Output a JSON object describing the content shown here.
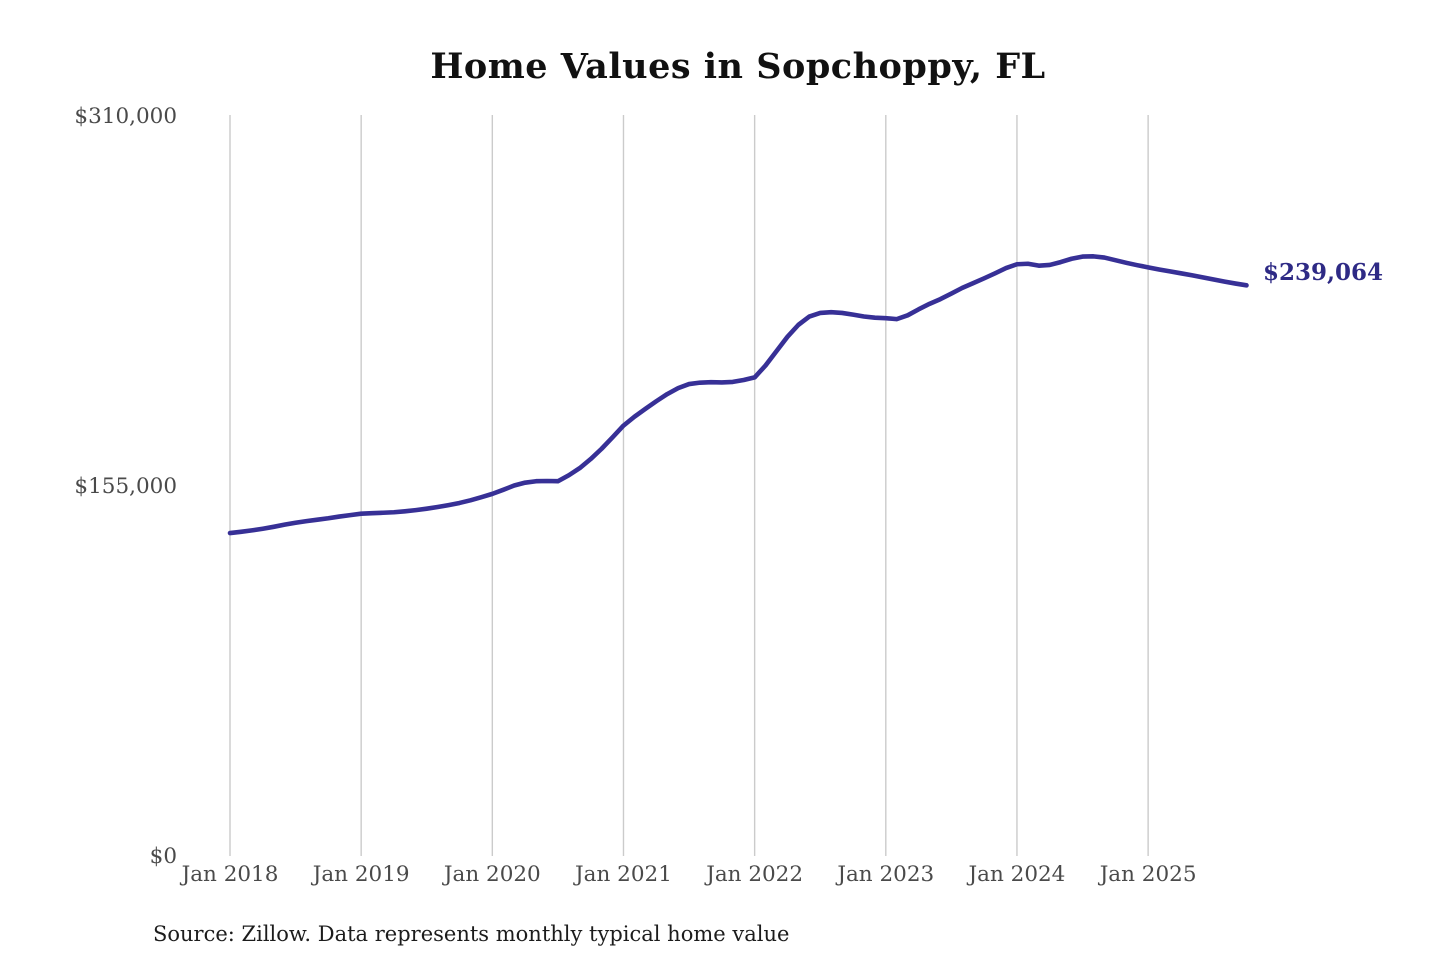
{
  "chart": {
    "title": "Home Values in Sopchoppy, FL",
    "end_label": "$239,064",
    "source_note": "Source: Zillow. Data represents monthly typical home value",
    "colors": {
      "line": "#373096",
      "end_label": "#2e2a85",
      "grid": "#cbcbcb",
      "tick_text": "#4a4a4a",
      "title_text": "#111111",
      "source_text": "#1c1c1c",
      "background": "#ffffff"
    }
  },
  "chart_data": {
    "type": "line",
    "title": "Home Values in Sopchoppy, FL",
    "xlabel": "",
    "ylabel": "",
    "legend": "none",
    "grid": "vertical-only",
    "ylim": [
      0,
      310000
    ],
    "y_ticks": [
      0,
      155000,
      310000
    ],
    "y_tick_labels": [
      "$0",
      "$155,000",
      "$310,000"
    ],
    "x_tick_labels": [
      "Jan 2018",
      "Jan 2019",
      "Jan 2020",
      "Jan 2021",
      "Jan 2022",
      "Jan 2023",
      "Jan 2024",
      "Jan 2025"
    ],
    "frequency": "monthly",
    "start_month": "2018-01",
    "end_month": "2025-10",
    "final_value": 239064,
    "final_value_label": "$239,064",
    "series": [
      {
        "name": "Typical home value",
        "values": [
          135300,
          135800,
          136400,
          137100,
          137900,
          138800,
          139600,
          140300,
          140900,
          141500,
          142200,
          142800,
          143400,
          143600,
          143800,
          144000,
          144400,
          144900,
          145500,
          146200,
          147000,
          147900,
          149000,
          150300,
          151700,
          153400,
          155200,
          156400,
          157000,
          157100,
          157000,
          159500,
          162500,
          166300,
          170600,
          175400,
          180300,
          184000,
          187300,
          190500,
          193500,
          196000,
          197700,
          198300,
          198500,
          198400,
          198600,
          199400,
          200500,
          205500,
          211500,
          217500,
          222500,
          226000,
          227500,
          227800,
          227500,
          226800,
          226000,
          225500,
          225300,
          224900,
          226500,
          229000,
          231300,
          233300,
          235600,
          238000,
          240000,
          242000,
          244100,
          246300,
          247900,
          248100,
          247300,
          247600,
          248800,
          250200,
          251100,
          251200,
          250700,
          249600,
          248500,
          247500,
          246600,
          245700,
          244900,
          244100,
          243300,
          242400,
          241500,
          240600,
          239800,
          239064
        ]
      }
    ]
  }
}
